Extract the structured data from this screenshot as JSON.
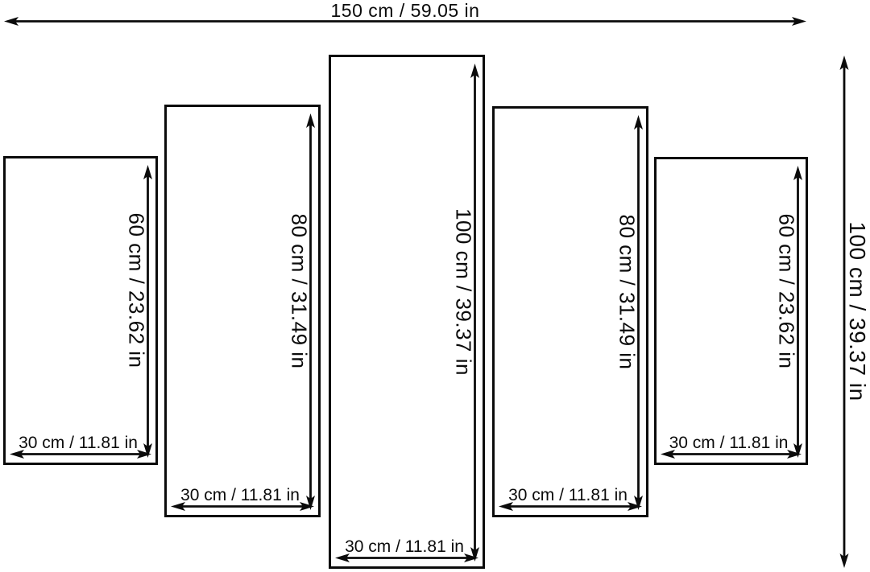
{
  "diagram": {
    "type": "multi-panel-size-diagram",
    "total_width_label": "150 cm / 59.05 in",
    "total_height_label": "100 cm / 39.37 in",
    "total_width_cm": 150,
    "total_width_in": 59.05,
    "total_height_cm": 100,
    "total_height_in": 39.37,
    "colors": {
      "line": "#0b0b0b",
      "background": "#ffffff"
    },
    "panels": [
      {
        "height_label": "60 cm / 23.62 in",
        "width_label": "30 cm / 11.81 in",
        "height_cm": 60,
        "height_in": 23.62,
        "width_cm": 30,
        "width_in": 11.81
      },
      {
        "height_label": "80 cm / 31.49 in",
        "width_label": "30 cm / 11.81 in",
        "height_cm": 80,
        "height_in": 31.49,
        "width_cm": 30,
        "width_in": 11.81
      },
      {
        "height_label": "100 cm / 39.37 in",
        "width_label": "30 cm / 11.81 in",
        "height_cm": 100,
        "height_in": 39.37,
        "width_cm": 30,
        "width_in": 11.81
      },
      {
        "height_label": "80 cm / 31.49 in",
        "width_label": "30 cm / 11.81 in",
        "height_cm": 80,
        "height_in": 31.49,
        "width_cm": 30,
        "width_in": 11.81
      },
      {
        "height_label": "60 cm / 23.62 in",
        "width_label": "30 cm / 11.81 in",
        "height_cm": 60,
        "height_in": 23.62,
        "width_cm": 30,
        "width_in": 11.81
      }
    ]
  }
}
